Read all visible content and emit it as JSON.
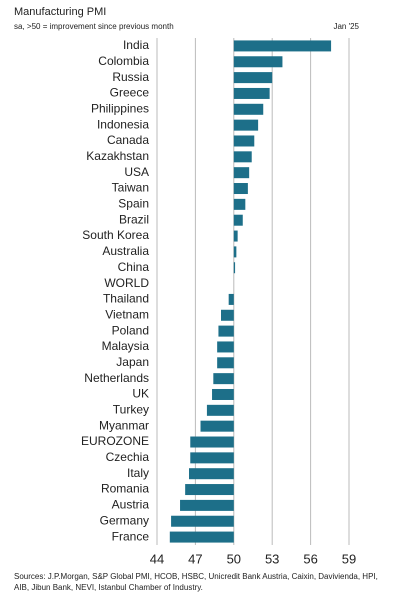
{
  "chart_data": {
    "type": "barh",
    "title": "Manufacturing PMI",
    "subtitle": "sa, >50 = improvement since previous month",
    "date": "Jan '25",
    "categories": [
      "India",
      "Colombia",
      "Russia",
      "Greece",
      "Philippines",
      "Indonesia",
      "Canada",
      "Kazakhstan",
      "USA",
      "Taiwan",
      "Spain",
      "Brazil",
      "South Korea",
      "Australia",
      "China",
      "WORLD",
      "Thailand",
      "Vietnam",
      "Poland",
      "Malaysia",
      "Japan",
      "Netherlands",
      "UK",
      "Turkey",
      "Myanmar",
      "EUROZONE",
      "Czechia",
      "Italy",
      "Romania",
      "Austria",
      "Germany",
      "France"
    ],
    "values": [
      57.6,
      53.8,
      53.0,
      52.8,
      52.3,
      51.9,
      51.6,
      51.4,
      51.2,
      51.1,
      50.9,
      50.7,
      50.3,
      50.2,
      50.1,
      50.0,
      49.6,
      49.0,
      48.8,
      48.7,
      48.7,
      48.4,
      48.3,
      47.9,
      47.4,
      46.6,
      46.6,
      46.5,
      46.2,
      45.8,
      45.1,
      45.0
    ],
    "baseline": 50,
    "color": "#1d6f89",
    "xlim": [
      44,
      59
    ],
    "xticks": [
      44,
      47,
      50,
      53,
      56,
      59
    ],
    "grid": true,
    "source": "Sources: J.P.Morgan, S&P Global PMI, HCOB, HSBC, Unicredit Bank Austria, Caixin, Davivienda, HPI, AIB, Jibun Bank, NEVI, Istanbul Chamber of Industry."
  }
}
